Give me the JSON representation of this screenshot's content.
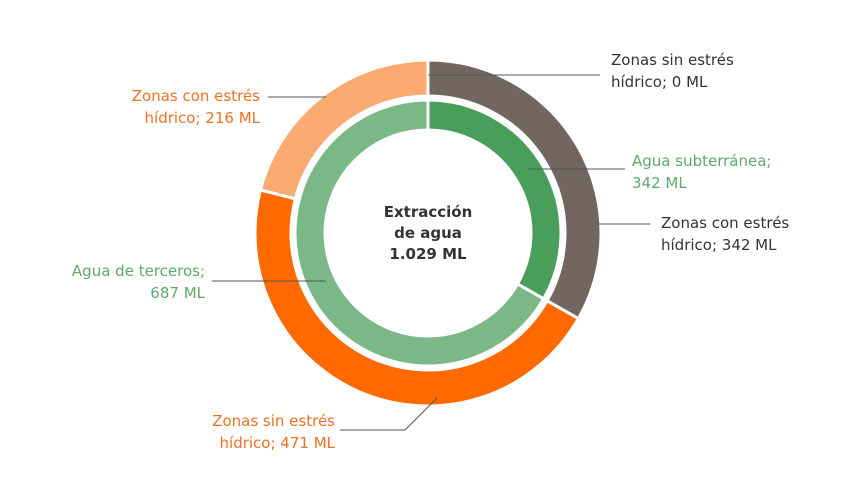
{
  "chart_data": {
    "type": "pie",
    "center_label": [
      "Extracción",
      "de agua",
      "1.029 ML"
    ],
    "total": 1029,
    "unit": "ML",
    "rings": [
      {
        "ring": "inner",
        "slices": [
          {
            "label": [
              "Agua subterránea;",
              "342 ML"
            ],
            "value": 342,
            "color": "#4a9e5c",
            "label_color": "#5fa86c"
          },
          {
            "label": [
              "Agua de terceros;",
              "687 ML"
            ],
            "value": 687,
            "color": "#7bb887",
            "label_color": "#5fa86c"
          }
        ]
      },
      {
        "ring": "outer",
        "slices": [
          {
            "label": [
              "Zonas sin estrés",
              "hídrico; 0 ML"
            ],
            "value": 0,
            "color": "#6b625c",
            "label_color": "#333333"
          },
          {
            "label": [
              "Zonas con estrés",
              "hídrico; 342 ML"
            ],
            "value": 342,
            "color": "#736660",
            "label_color": "#333333"
          },
          {
            "label": [
              "Zonas sin estrés",
              "hídrico; 471 ML"
            ],
            "value": 471,
            "color": "#ff6a00",
            "label_color": "#ee7022"
          },
          {
            "label": [
              "Zonas con estrés",
              "hídrico; 216 ML"
            ],
            "value": 216,
            "color": "#fbab72",
            "label_color": "#ee7022"
          }
        ]
      }
    ]
  }
}
